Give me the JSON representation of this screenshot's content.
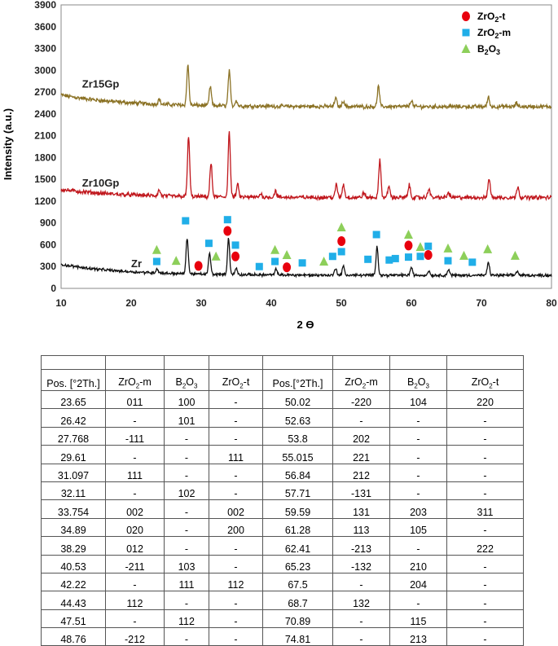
{
  "chart_data": {
    "type": "line",
    "title": "",
    "xlabel": "2 ϴ",
    "ylabel": "Intensity (a.u.)",
    "xlim": [
      10,
      80
    ],
    "ylim": [
      0,
      3900
    ],
    "x_ticks": [
      10,
      20,
      30,
      40,
      50,
      60,
      70,
      80
    ],
    "y_ticks": [
      0,
      300,
      600,
      900,
      1200,
      1500,
      1800,
      2100,
      2400,
      2700,
      3000,
      3300,
      3600,
      3900
    ],
    "grid": false,
    "legend_position": "top-right",
    "series": [
      {
        "name": "Zr15Gp",
        "color": "#8b7225",
        "baseline": 2500,
        "noise": 45,
        "start_bump": 160,
        "peaks": [
          [
            24.0,
            70
          ],
          [
            28.1,
            550
          ],
          [
            31.3,
            260
          ],
          [
            34.0,
            480
          ],
          [
            35.0,
            80
          ],
          [
            49.2,
            120
          ],
          [
            50.3,
            80
          ],
          [
            55.3,
            280
          ],
          [
            60.0,
            90
          ],
          [
            71.0,
            130
          ],
          [
            75.0,
            50
          ]
        ]
      },
      {
        "name": "Zr10Gp",
        "color": "#c0161c",
        "baseline": 1250,
        "noise": 45,
        "start_bump": 110,
        "peaks": [
          [
            24.0,
            80
          ],
          [
            28.2,
            830
          ],
          [
            31.4,
            460
          ],
          [
            34.0,
            890
          ],
          [
            35.2,
            170
          ],
          [
            38.5,
            50
          ],
          [
            40.6,
            90
          ],
          [
            49.3,
            180
          ],
          [
            50.3,
            180
          ],
          [
            53.2,
            70
          ],
          [
            55.5,
            520
          ],
          [
            56.8,
            160
          ],
          [
            59.7,
            170
          ],
          [
            62.5,
            130
          ],
          [
            65.3,
            70
          ],
          [
            71.1,
            270
          ],
          [
            75.2,
            160
          ]
        ]
      },
      {
        "name": "Zr",
        "color": "#111111",
        "baseline": 180,
        "noise": 30,
        "start_bump": 150,
        "peaks": [
          [
            23.7,
            60
          ],
          [
            28.0,
            500
          ],
          [
            31.2,
            290
          ],
          [
            33.9,
            500
          ],
          [
            35.0,
            90
          ],
          [
            40.7,
            80
          ],
          [
            49.2,
            100
          ],
          [
            50.3,
            120
          ],
          [
            55.1,
            400
          ],
          [
            60.0,
            110
          ],
          [
            62.5,
            60
          ],
          [
            65.3,
            80
          ],
          [
            71.0,
            180
          ],
          [
            75.1,
            60
          ]
        ]
      }
    ],
    "markers": {
      "ZrO2_t": {
        "color": "#e8000d",
        "points": [
          [
            29.61,
            310
          ],
          [
            33.754,
            790
          ],
          [
            34.89,
            440
          ],
          [
            42.22,
            290
          ],
          [
            50.02,
            650
          ],
          [
            59.59,
            590
          ],
          [
            62.41,
            460
          ]
        ]
      },
      "ZrO2_m": {
        "color": "#20aee8",
        "points": [
          [
            23.65,
            370
          ],
          [
            27.768,
            930
          ],
          [
            31.097,
            620
          ],
          [
            33.754,
            945
          ],
          [
            34.89,
            595
          ],
          [
            38.29,
            300
          ],
          [
            40.53,
            370
          ],
          [
            44.43,
            350
          ],
          [
            48.76,
            440
          ],
          [
            50.02,
            505
          ],
          [
            53.8,
            400
          ],
          [
            55.015,
            740
          ],
          [
            56.84,
            390
          ],
          [
            57.71,
            410
          ],
          [
            59.59,
            430
          ],
          [
            61.28,
            440
          ],
          [
            62.41,
            580
          ],
          [
            65.23,
            380
          ],
          [
            68.7,
            360
          ]
        ]
      },
      "B2O3": {
        "color": "#8dcf5a",
        "points": [
          [
            23.65,
            530
          ],
          [
            26.42,
            380
          ],
          [
            32.11,
            440
          ],
          [
            40.53,
            530
          ],
          [
            42.22,
            460
          ],
          [
            47.51,
            370
          ],
          [
            50.02,
            840
          ],
          [
            59.59,
            740
          ],
          [
            61.28,
            570
          ],
          [
            65.23,
            550
          ],
          [
            67.5,
            450
          ],
          [
            70.89,
            540
          ],
          [
            74.81,
            450
          ]
        ]
      }
    }
  },
  "legend": [
    {
      "key": "ZrO2_t",
      "shape": "circle",
      "label_main": "ZrO",
      "label_sub": "2",
      "label_tail": "-t"
    },
    {
      "key": "ZrO2_m",
      "shape": "square",
      "label_main": "ZrO",
      "label_sub": "2",
      "label_tail": "-m"
    },
    {
      "key": "B2O3",
      "shape": "triangle",
      "label_main": "B",
      "label_sub": "2",
      "label_tail": "O",
      "label_sub2": "3"
    }
  ],
  "table": {
    "headers": [
      "Pos. [°2Th.]",
      "ZrO2-m",
      "B2O3",
      "ZrO2-t",
      "Pos.[°2Th.]",
      "ZrO2-m",
      "B2O3",
      "ZrO2-t"
    ],
    "rows": [
      [
        "23.65",
        "011",
        "100",
        "-",
        "50.02",
        "-220",
        "104",
        "220"
      ],
      [
        "26.42",
        "-",
        "101",
        "-",
        "52.63",
        "-",
        "-",
        "-"
      ],
      [
        "27.768",
        "-111",
        "-",
        "-",
        "53.8",
        "202",
        "-",
        "-"
      ],
      [
        "29.61",
        "-",
        "-",
        "111",
        "55.015",
        "221",
        "-",
        "-"
      ],
      [
        "31.097",
        "111",
        "-",
        "-",
        "56.84",
        "212",
        "-",
        "-"
      ],
      [
        "32.11",
        "-",
        "102",
        "-",
        "57.71",
        "-131",
        "-",
        "-"
      ],
      [
        "33.754",
        "002",
        "-",
        "002",
        "59.59",
        "131",
        "203",
        "311"
      ],
      [
        "34.89",
        "020",
        "-",
        "200",
        "61.28",
        "113",
        "105",
        "-"
      ],
      [
        "38.29",
        "012",
        "-",
        "-",
        "62.41",
        "-213",
        "-",
        "222"
      ],
      [
        "40.53",
        "-211",
        "103",
        "-",
        "65.23",
        "-132",
        "210",
        "-"
      ],
      [
        "42.22",
        "-",
        "111",
        "112",
        "67.5",
        "-",
        "204",
        "-"
      ],
      [
        "44.43",
        "112",
        "-",
        "-",
        "68.7",
        "132",
        "-",
        "-"
      ],
      [
        "47.51",
        "-",
        "112",
        "-",
        "70.89",
        "-",
        "115",
        "-"
      ],
      [
        "48.76",
        "-212",
        "-",
        "-",
        "74.81",
        "-",
        "213",
        "-"
      ]
    ]
  }
}
